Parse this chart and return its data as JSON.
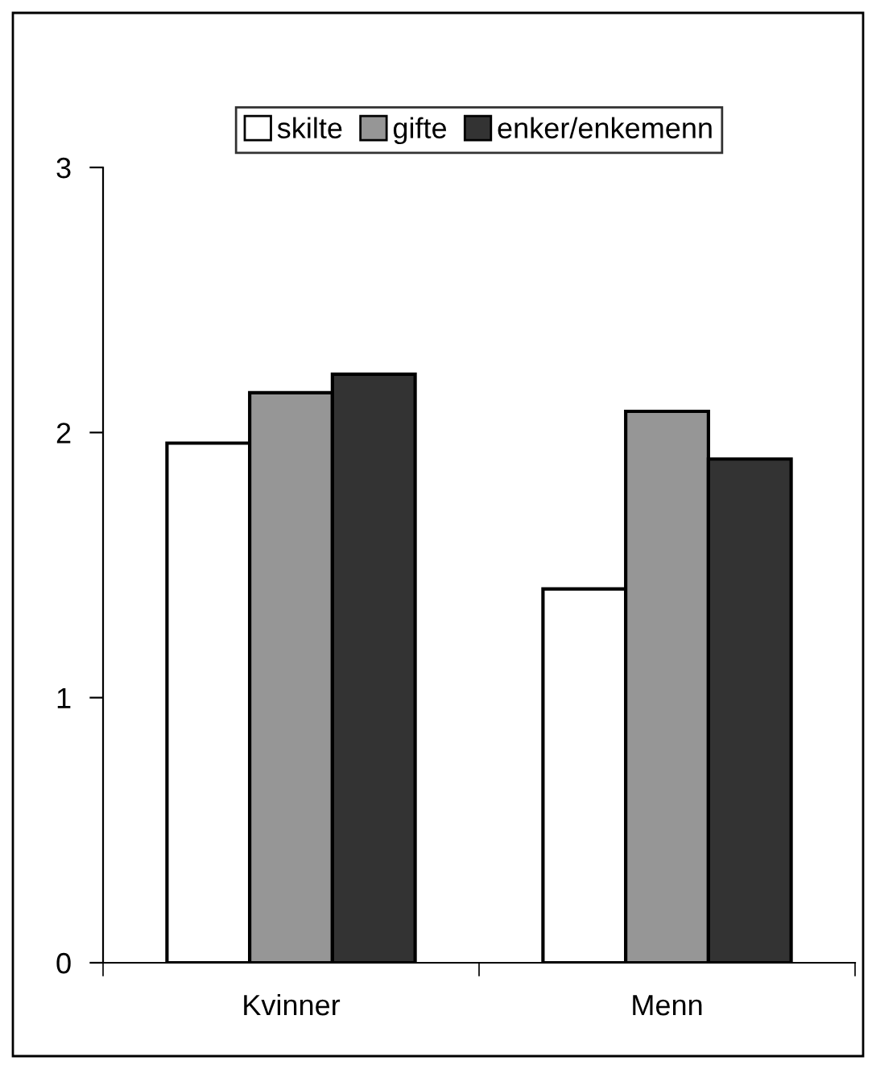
{
  "chart_data": {
    "type": "bar",
    "categories": [
      "Kvinner",
      "Menn"
    ],
    "series": [
      {
        "name": "skilte",
        "color": "#ffffff",
        "values": [
          1.96,
          1.41
        ]
      },
      {
        "name": "gifte",
        "color": "#969696",
        "values": [
          2.15,
          2.08
        ]
      },
      {
        "name": "enker/enkemenn",
        "color": "#333333",
        "values": [
          2.22,
          1.9
        ]
      }
    ],
    "ylim": [
      0,
      3
    ],
    "yticks": [
      0,
      1,
      2,
      3
    ],
    "grid": false,
    "legend": "top"
  }
}
